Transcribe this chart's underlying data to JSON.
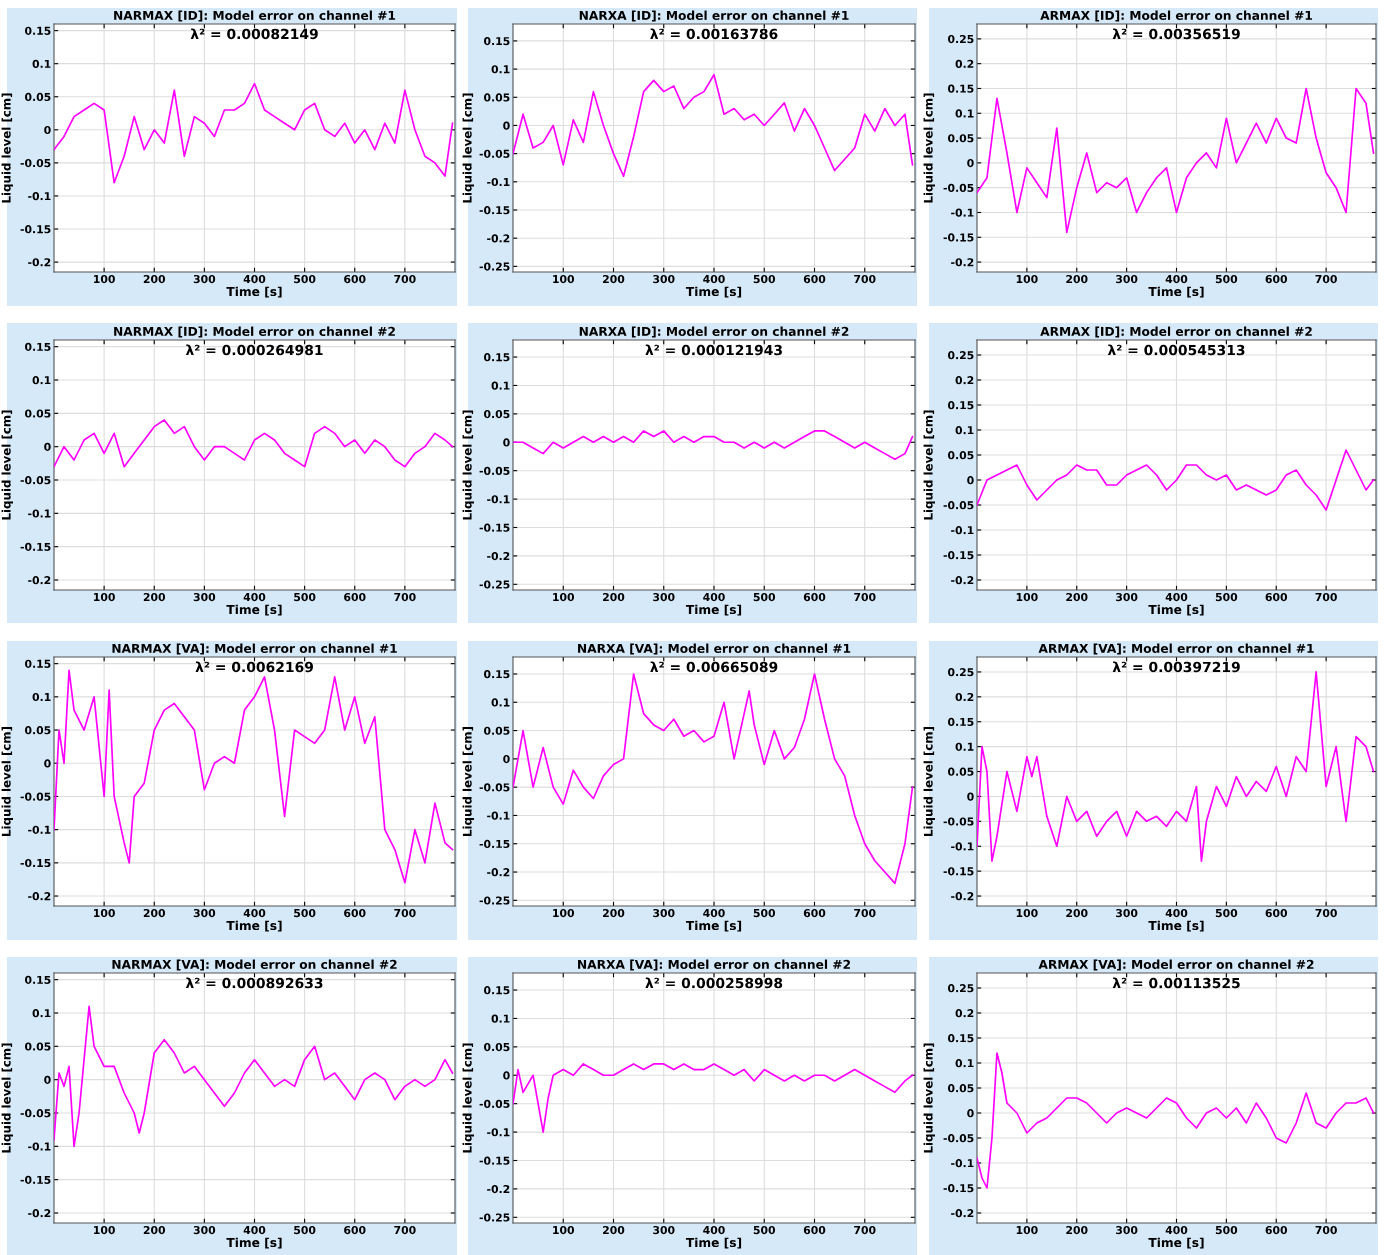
{
  "chart_data": [
    {
      "type": "line",
      "title": "NARMAX [ID]: Model error on channel #1",
      "xlabel": "Time [s]",
      "ylabel": "Liquid level [cm]",
      "annotations": [
        "λ² = 0.00082149"
      ],
      "color": "#ff00ff",
      "grid": true,
      "xlim": [
        0,
        800
      ],
      "xticks": [
        100,
        200,
        300,
        400,
        500,
        600,
        700
      ],
      "ylim": [
        -0.215,
        0.16
      ],
      "yticks": [
        -0.2,
        -0.15,
        -0.1,
        -0.05,
        0,
        0.05,
        0.1,
        0.15
      ],
      "x": [
        0,
        20,
        40,
        60,
        80,
        100,
        120,
        140,
        160,
        180,
        200,
        220,
        240,
        260,
        280,
        300,
        320,
        340,
        360,
        380,
        400,
        420,
        440,
        460,
        480,
        500,
        520,
        540,
        560,
        580,
        600,
        620,
        640,
        660,
        680,
        700,
        720,
        740,
        760,
        780,
        795
      ],
      "values": [
        -0.03,
        -0.01,
        0.02,
        0.03,
        0.04,
        0.03,
        -0.08,
        -0.04,
        0.02,
        -0.03,
        0.0,
        -0.02,
        0.06,
        -0.04,
        0.02,
        0.01,
        -0.01,
        0.03,
        0.03,
        0.04,
        0.07,
        0.03,
        0.02,
        0.01,
        0.0,
        0.03,
        0.04,
        0.0,
        -0.01,
        0.01,
        -0.02,
        0.0,
        -0.03,
        0.01,
        -0.02,
        0.06,
        0.0,
        -0.04,
        -0.05,
        -0.07,
        0.01
      ]
    },
    {
      "type": "line",
      "title": "NARXA [ID]: Model error on channel #1",
      "xlabel": "Time [s]",
      "ylabel": "Liquid level [cm]",
      "annotations": [
        "λ² = 0.00163786"
      ],
      "color": "#ff00ff",
      "grid": true,
      "xlim": [
        0,
        800
      ],
      "xticks": [
        100,
        200,
        300,
        400,
        500,
        600,
        700
      ],
      "ylim": [
        -0.26,
        0.18
      ],
      "yticks": [
        -0.25,
        -0.2,
        -0.15,
        -0.1,
        -0.05,
        0,
        0.05,
        0.1,
        0.15
      ],
      "x": [
        0,
        20,
        40,
        60,
        80,
        100,
        120,
        140,
        160,
        180,
        200,
        220,
        240,
        260,
        280,
        300,
        320,
        340,
        360,
        380,
        400,
        420,
        440,
        460,
        480,
        500,
        520,
        540,
        560,
        580,
        600,
        620,
        640,
        660,
        680,
        700,
        720,
        740,
        760,
        780,
        795
      ],
      "values": [
        -0.05,
        0.02,
        -0.04,
        -0.03,
        0.0,
        -0.07,
        0.01,
        -0.03,
        0.06,
        0.0,
        -0.05,
        -0.09,
        -0.02,
        0.06,
        0.08,
        0.06,
        0.07,
        0.03,
        0.05,
        0.06,
        0.09,
        0.02,
        0.03,
        0.01,
        0.02,
        0.0,
        0.02,
        0.04,
        -0.01,
        0.03,
        0.0,
        -0.04,
        -0.08,
        -0.06,
        -0.04,
        0.02,
        -0.01,
        0.03,
        0.0,
        0.02,
        -0.07
      ]
    },
    {
      "type": "line",
      "title": "ARMAX [ID]: Model error on channel #1",
      "xlabel": "Time [s]",
      "ylabel": "Liquid level [cm]",
      "annotations": [
        "λ² = 0.00356519"
      ],
      "color": "#ff00ff",
      "grid": true,
      "xlim": [
        0,
        800
      ],
      "xticks": [
        100,
        200,
        300,
        400,
        500,
        600,
        700
      ],
      "ylim": [
        -0.22,
        0.28
      ],
      "yticks": [
        -0.2,
        -0.15,
        -0.1,
        -0.05,
        0,
        0.05,
        0.1,
        0.15,
        0.2,
        0.25
      ],
      "x": [
        0,
        20,
        40,
        60,
        80,
        100,
        120,
        140,
        160,
        180,
        200,
        220,
        240,
        260,
        280,
        300,
        320,
        340,
        360,
        380,
        400,
        420,
        440,
        460,
        480,
        500,
        520,
        540,
        560,
        580,
        600,
        620,
        640,
        660,
        680,
        700,
        720,
        740,
        760,
        780,
        795
      ],
      "values": [
        -0.06,
        -0.03,
        0.13,
        0.02,
        -0.1,
        -0.01,
        -0.04,
        -0.07,
        0.07,
        -0.14,
        -0.05,
        0.02,
        -0.06,
        -0.04,
        -0.05,
        -0.03,
        -0.1,
        -0.06,
        -0.03,
        -0.01,
        -0.1,
        -0.03,
        0.0,
        0.02,
        -0.01,
        0.09,
        0.0,
        0.04,
        0.08,
        0.04,
        0.09,
        0.05,
        0.04,
        0.15,
        0.05,
        -0.02,
        -0.05,
        -0.1,
        0.15,
        0.12,
        0.02
      ]
    },
    {
      "type": "line",
      "title": "NARMAX [ID]: Model error on channel #2",
      "xlabel": "Time [s]",
      "ylabel": "Liquid level [cm]",
      "annotations": [
        "λ² = 0.000264981"
      ],
      "color": "#ff00ff",
      "grid": true,
      "xlim": [
        0,
        800
      ],
      "xticks": [
        100,
        200,
        300,
        400,
        500,
        600,
        700
      ],
      "ylim": [
        -0.215,
        0.16
      ],
      "yticks": [
        -0.2,
        -0.15,
        -0.1,
        -0.05,
        0,
        0.05,
        0.1,
        0.15
      ],
      "x": [
        0,
        20,
        40,
        60,
        80,
        100,
        120,
        140,
        160,
        180,
        200,
        220,
        240,
        260,
        280,
        300,
        320,
        340,
        360,
        380,
        400,
        420,
        440,
        460,
        480,
        500,
        520,
        540,
        560,
        580,
        600,
        620,
        640,
        660,
        680,
        700,
        720,
        740,
        760,
        780,
        795
      ],
      "values": [
        -0.03,
        0.0,
        -0.02,
        0.01,
        0.02,
        -0.01,
        0.02,
        -0.03,
        -0.01,
        0.01,
        0.03,
        0.04,
        0.02,
        0.03,
        0.0,
        -0.02,
        0.0,
        0.0,
        -0.01,
        -0.02,
        0.01,
        0.02,
        0.01,
        -0.01,
        -0.02,
        -0.03,
        0.02,
        0.03,
        0.02,
        0.0,
        0.01,
        -0.01,
        0.01,
        0.0,
        -0.02,
        -0.03,
        -0.01,
        0.0,
        0.02,
        0.01,
        0.0
      ]
    },
    {
      "type": "line",
      "title": "NARXA [ID]: Model error on channel #2",
      "xlabel": "Time [s]",
      "ylabel": "Liquid level [cm]",
      "annotations": [
        "λ² = 0.000121943"
      ],
      "color": "#ff00ff",
      "grid": true,
      "xlim": [
        0,
        800
      ],
      "xticks": [
        100,
        200,
        300,
        400,
        500,
        600,
        700
      ],
      "ylim": [
        -0.26,
        0.18
      ],
      "yticks": [
        -0.25,
        -0.2,
        -0.15,
        -0.1,
        -0.05,
        0,
        0.05,
        0.1,
        0.15
      ],
      "x": [
        0,
        20,
        40,
        60,
        80,
        100,
        120,
        140,
        160,
        180,
        200,
        220,
        240,
        260,
        280,
        300,
        320,
        340,
        360,
        380,
        400,
        420,
        440,
        460,
        480,
        500,
        520,
        540,
        560,
        580,
        600,
        620,
        640,
        660,
        680,
        700,
        720,
        740,
        760,
        780,
        795
      ],
      "values": [
        0.0,
        0.0,
        -0.01,
        -0.02,
        0.0,
        -0.01,
        0.0,
        0.01,
        0.0,
        0.01,
        0.0,
        0.01,
        0.0,
        0.02,
        0.01,
        0.02,
        0.0,
        0.01,
        0.0,
        0.01,
        0.01,
        0.0,
        0.0,
        -0.01,
        0.0,
        -0.01,
        0.0,
        -0.01,
        0.0,
        0.01,
        0.02,
        0.02,
        0.01,
        0.0,
        -0.01,
        0.0,
        -0.01,
        -0.02,
        -0.03,
        -0.02,
        0.01
      ]
    },
    {
      "type": "line",
      "title": "ARMAX [ID]: Model error on channel #2",
      "xlabel": "Time [s]",
      "ylabel": "Liquid level [cm]",
      "annotations": [
        "λ² = 0.000545313"
      ],
      "color": "#ff00ff",
      "grid": true,
      "xlim": [
        0,
        800
      ],
      "xticks": [
        100,
        200,
        300,
        400,
        500,
        600,
        700
      ],
      "ylim": [
        -0.22,
        0.28
      ],
      "yticks": [
        -0.2,
        -0.15,
        -0.1,
        -0.05,
        0,
        0.05,
        0.1,
        0.15,
        0.2,
        0.25
      ],
      "x": [
        0,
        20,
        40,
        60,
        80,
        100,
        120,
        140,
        160,
        180,
        200,
        220,
        240,
        260,
        280,
        300,
        320,
        340,
        360,
        380,
        400,
        420,
        440,
        460,
        480,
        500,
        520,
        540,
        560,
        580,
        600,
        620,
        640,
        660,
        680,
        700,
        720,
        740,
        760,
        780,
        795
      ],
      "values": [
        -0.05,
        0.0,
        0.01,
        0.02,
        0.03,
        -0.01,
        -0.04,
        -0.02,
        0.0,
        0.01,
        0.03,
        0.02,
        0.02,
        -0.01,
        -0.01,
        0.01,
        0.02,
        0.03,
        0.01,
        -0.02,
        0.0,
        0.03,
        0.03,
        0.01,
        0.0,
        0.01,
        -0.02,
        -0.01,
        -0.02,
        -0.03,
        -0.02,
        0.01,
        0.02,
        -0.01,
        -0.03,
        -0.06,
        0.0,
        0.06,
        0.02,
        -0.02,
        0.0
      ]
    },
    {
      "type": "line",
      "title": "NARMAX [VA]: Model error on channel #1",
      "xlabel": "Time [s]",
      "ylabel": "Liquid level [cm]",
      "annotations": [
        "λ² = 0.0062169"
      ],
      "color": "#ff00ff",
      "grid": true,
      "xlim": [
        0,
        800
      ],
      "xticks": [
        100,
        200,
        300,
        400,
        500,
        600,
        700
      ],
      "ylim": [
        -0.215,
        0.16
      ],
      "yticks": [
        -0.2,
        -0.15,
        -0.1,
        -0.05,
        0,
        0.05,
        0.1,
        0.15
      ],
      "x": [
        0,
        10,
        20,
        30,
        40,
        60,
        80,
        100,
        110,
        120,
        140,
        150,
        160,
        180,
        200,
        220,
        240,
        260,
        280,
        300,
        320,
        340,
        360,
        380,
        400,
        420,
        440,
        460,
        480,
        500,
        520,
        540,
        560,
        580,
        600,
        620,
        640,
        660,
        680,
        700,
        720,
        740,
        760,
        780,
        795
      ],
      "values": [
        -0.1,
        0.05,
        0.0,
        0.14,
        0.08,
        0.05,
        0.1,
        -0.05,
        0.11,
        -0.05,
        -0.12,
        -0.15,
        -0.05,
        -0.03,
        0.05,
        0.08,
        0.09,
        0.07,
        0.05,
        -0.04,
        0.0,
        0.01,
        0.0,
        0.08,
        0.1,
        0.13,
        0.05,
        -0.08,
        0.05,
        0.04,
        0.03,
        0.05,
        0.13,
        0.05,
        0.1,
        0.03,
        0.07,
        -0.1,
        -0.13,
        -0.18,
        -0.1,
        -0.15,
        -0.06,
        -0.12,
        -0.13
      ]
    },
    {
      "type": "line",
      "title": "NARXA [VA]: Model error on channel #1",
      "xlabel": "Time [s]",
      "ylabel": "Liquid level [cm]",
      "annotations": [
        "λ² = 0.00665089"
      ],
      "color": "#ff00ff",
      "grid": true,
      "xlim": [
        0,
        800
      ],
      "xticks": [
        100,
        200,
        300,
        400,
        500,
        600,
        700
      ],
      "ylim": [
        -0.26,
        0.18
      ],
      "yticks": [
        -0.25,
        -0.2,
        -0.15,
        -0.1,
        -0.05,
        0,
        0.05,
        0.1,
        0.15
      ],
      "x": [
        0,
        20,
        40,
        60,
        80,
        100,
        120,
        140,
        160,
        180,
        200,
        220,
        240,
        260,
        280,
        300,
        320,
        340,
        360,
        380,
        400,
        420,
        440,
        460,
        470,
        480,
        500,
        520,
        540,
        560,
        580,
        600,
        620,
        640,
        660,
        680,
        700,
        720,
        740,
        760,
        780,
        795
      ],
      "values": [
        -0.05,
        0.05,
        -0.05,
        0.02,
        -0.05,
        -0.08,
        -0.02,
        -0.05,
        -0.07,
        -0.03,
        -0.01,
        0.0,
        0.15,
        0.08,
        0.06,
        0.05,
        0.07,
        0.04,
        0.05,
        0.03,
        0.04,
        0.1,
        0.0,
        0.08,
        0.12,
        0.06,
        -0.01,
        0.05,
        0.0,
        0.02,
        0.07,
        0.15,
        0.07,
        0.0,
        -0.03,
        -0.1,
        -0.15,
        -0.18,
        -0.2,
        -0.22,
        -0.15,
        -0.05
      ]
    },
    {
      "type": "line",
      "title": "ARMAX [VA]: Model error on channel #1",
      "xlabel": "Time [s]",
      "ylabel": "Liquid level [cm]",
      "annotations": [
        "λ² = 0.00397219"
      ],
      "color": "#ff00ff",
      "grid": true,
      "xlim": [
        0,
        800
      ],
      "xticks": [
        100,
        200,
        300,
        400,
        500,
        600,
        700
      ],
      "ylim": [
        -0.22,
        0.28
      ],
      "yticks": [
        -0.2,
        -0.15,
        -0.1,
        -0.05,
        0,
        0.05,
        0.1,
        0.15,
        0.2,
        0.25
      ],
      "x": [
        0,
        10,
        20,
        30,
        40,
        60,
        80,
        100,
        110,
        120,
        140,
        160,
        180,
        200,
        220,
        240,
        260,
        280,
        300,
        320,
        340,
        360,
        380,
        400,
        420,
        440,
        450,
        460,
        480,
        500,
        520,
        540,
        560,
        580,
        600,
        620,
        640,
        660,
        680,
        700,
        720,
        740,
        760,
        780,
        795
      ],
      "values": [
        -0.1,
        0.1,
        0.05,
        -0.13,
        -0.08,
        0.05,
        -0.03,
        0.08,
        0.04,
        0.08,
        -0.04,
        -0.1,
        0.0,
        -0.05,
        -0.03,
        -0.08,
        -0.05,
        -0.03,
        -0.08,
        -0.03,
        -0.05,
        -0.04,
        -0.06,
        -0.03,
        -0.05,
        0.02,
        -0.13,
        -0.05,
        0.02,
        -0.02,
        0.04,
        0.0,
        0.03,
        0.01,
        0.06,
        0.0,
        0.08,
        0.05,
        0.25,
        0.02,
        0.1,
        -0.05,
        0.12,
        0.1,
        0.05
      ]
    },
    {
      "type": "line",
      "title": "NARMAX [VA]: Model error on channel #2",
      "xlabel": "Time [s]",
      "ylabel": "Liquid level [cm]",
      "annotations": [
        "λ² = 0.000892633"
      ],
      "color": "#ff00ff",
      "grid": true,
      "xlim": [
        0,
        800
      ],
      "xticks": [
        100,
        200,
        300,
        400,
        500,
        600,
        700
      ],
      "ylim": [
        -0.215,
        0.16
      ],
      "yticks": [
        -0.2,
        -0.15,
        -0.1,
        -0.05,
        0,
        0.05,
        0.1,
        0.15
      ],
      "x": [
        0,
        10,
        20,
        30,
        40,
        50,
        60,
        70,
        80,
        100,
        120,
        140,
        160,
        170,
        180,
        200,
        220,
        240,
        260,
        280,
        300,
        320,
        340,
        360,
        380,
        400,
        420,
        440,
        460,
        480,
        500,
        520,
        540,
        560,
        580,
        600,
        620,
        640,
        660,
        680,
        700,
        720,
        740,
        760,
        780,
        795
      ],
      "values": [
        -0.09,
        0.01,
        -0.01,
        0.02,
        -0.1,
        -0.05,
        0.03,
        0.11,
        0.05,
        0.02,
        0.02,
        -0.02,
        -0.05,
        -0.08,
        -0.05,
        0.04,
        0.06,
        0.04,
        0.01,
        0.02,
        0.0,
        -0.02,
        -0.04,
        -0.02,
        0.01,
        0.03,
        0.01,
        -0.01,
        0.0,
        -0.01,
        0.03,
        0.05,
        0.0,
        0.01,
        -0.01,
        -0.03,
        0.0,
        0.01,
        0.0,
        -0.03,
        -0.01,
        0.0,
        -0.01,
        0.0,
        0.03,
        0.01
      ]
    },
    {
      "type": "line",
      "title": "NARXA [VA]: Model error on channel #2",
      "xlabel": "Time [s]",
      "ylabel": "Liquid level [cm]",
      "annotations": [
        "λ² = 0.000258998"
      ],
      "color": "#ff00ff",
      "grid": true,
      "xlim": [
        0,
        800
      ],
      "xticks": [
        100,
        200,
        300,
        400,
        500,
        600,
        700
      ],
      "ylim": [
        -0.26,
        0.18
      ],
      "yticks": [
        -0.25,
        -0.2,
        -0.15,
        -0.1,
        -0.05,
        0,
        0.05,
        0.1,
        0.15
      ],
      "x": [
        0,
        10,
        20,
        40,
        50,
        60,
        70,
        80,
        100,
        120,
        140,
        160,
        180,
        200,
        220,
        240,
        260,
        280,
        300,
        320,
        340,
        360,
        380,
        400,
        420,
        440,
        460,
        480,
        500,
        520,
        540,
        560,
        580,
        600,
        620,
        640,
        660,
        680,
        700,
        720,
        740,
        760,
        780,
        795
      ],
      "values": [
        -0.05,
        0.01,
        -0.03,
        0.0,
        -0.05,
        -0.1,
        -0.04,
        0.0,
        0.01,
        0.0,
        0.02,
        0.01,
        0.0,
        0.0,
        0.01,
        0.02,
        0.01,
        0.02,
        0.02,
        0.01,
        0.02,
        0.01,
        0.01,
        0.02,
        0.01,
        0.0,
        0.01,
        -0.01,
        0.01,
        0.0,
        -0.01,
        0.0,
        -0.01,
        0.0,
        0.0,
        -0.01,
        0.0,
        0.01,
        0.0,
        -0.01,
        -0.02,
        -0.03,
        -0.01,
        0.0
      ]
    },
    {
      "type": "line",
      "title": "ARMAX [VA]: Model error on channel #2",
      "xlabel": "Time [s]",
      "ylabel": "Liquid level [cm]",
      "annotations": [
        "λ² = 0.00113525"
      ],
      "color": "#ff00ff",
      "grid": true,
      "xlim": [
        0,
        800
      ],
      "xticks": [
        100,
        200,
        300,
        400,
        500,
        600,
        700
      ],
      "ylim": [
        -0.22,
        0.28
      ],
      "yticks": [
        -0.2,
        -0.15,
        -0.1,
        -0.05,
        0,
        0.05,
        0.1,
        0.15,
        0.2,
        0.25
      ],
      "x": [
        0,
        10,
        20,
        30,
        40,
        50,
        60,
        80,
        100,
        120,
        140,
        160,
        180,
        200,
        220,
        240,
        260,
        280,
        300,
        320,
        340,
        360,
        380,
        400,
        420,
        440,
        460,
        480,
        500,
        520,
        540,
        560,
        580,
        600,
        620,
        640,
        660,
        680,
        700,
        720,
        740,
        760,
        780,
        795
      ],
      "values": [
        -0.09,
        -0.13,
        -0.15,
        -0.05,
        0.12,
        0.08,
        0.02,
        0.0,
        -0.04,
        -0.02,
        -0.01,
        0.01,
        0.03,
        0.03,
        0.02,
        0.0,
        -0.02,
        0.0,
        0.01,
        0.0,
        -0.01,
        0.01,
        0.03,
        0.02,
        -0.01,
        -0.03,
        0.0,
        0.01,
        -0.01,
        0.01,
        -0.02,
        0.02,
        -0.01,
        -0.05,
        -0.06,
        -0.02,
        0.04,
        -0.02,
        -0.03,
        0.0,
        0.02,
        0.02,
        0.03,
        0.0
      ]
    }
  ]
}
